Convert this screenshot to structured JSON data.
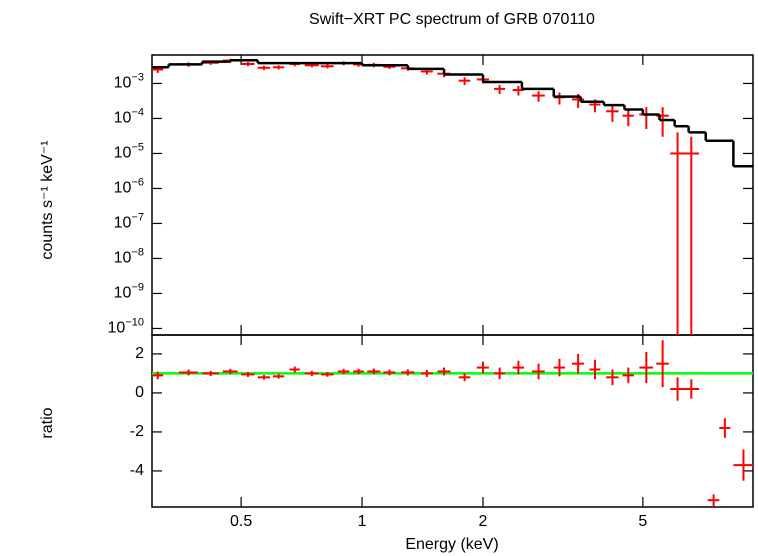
{
  "chart_data": [
    {
      "type": "errorbar",
      "title": "Swift−XRT PC spectrum of GRB 070110",
      "ylabel": "counts s⁻¹ keV⁻¹",
      "xscale": "log",
      "yscale": "log",
      "xlim": [
        0.3,
        9.4
      ],
      "ylim": [
        6.5e-11,
        0.0065
      ],
      "yticks": [
        {
          "value": 0.001,
          "label": "10−3"
        },
        {
          "value": 0.0001,
          "label": "10−4"
        },
        {
          "value": 1e-05,
          "label": "10−5"
        },
        {
          "value": 1e-06,
          "label": "10−6"
        },
        {
          "value": 1e-07,
          "label": "10−7"
        },
        {
          "value": 1e-08,
          "label": "10−8"
        },
        {
          "value": 1e-09,
          "label": "10−9"
        },
        {
          "value": 1e-10,
          "label": "10−10"
        }
      ],
      "series": [
        {
          "type": "errorbar",
          "color": "#ff0000",
          "x": [
            0.31,
            0.37,
            0.42,
            0.47,
            0.52,
            0.57,
            0.62,
            0.68,
            0.75,
            0.82,
            0.9,
            0.98,
            1.07,
            1.17,
            1.3,
            1.45,
            1.6,
            1.8,
            2.0,
            2.2,
            2.45,
            2.75,
            3.1,
            3.45,
            3.8,
            4.2,
            4.6,
            5.1,
            5.6,
            6.1,
            6.6
          ],
          "xerr": [
            0.01,
            0.02,
            0.02,
            0.02,
            0.02,
            0.02,
            0.02,
            0.02,
            0.03,
            0.03,
            0.03,
            0.03,
            0.04,
            0.04,
            0.05,
            0.05,
            0.06,
            0.06,
            0.07,
            0.07,
            0.08,
            0.1,
            0.1,
            0.12,
            0.12,
            0.15,
            0.15,
            0.2,
            0.2,
            0.25,
            0.3
          ],
          "values": [
            0.0025,
            0.0035,
            0.0039,
            0.0045,
            0.0036,
            0.0028,
            0.0029,
            0.0036,
            0.0033,
            0.0031,
            0.0038,
            0.0035,
            0.0034,
            0.003,
            0.0027,
            0.0022,
            0.0019,
            0.0012,
            0.0013,
            0.0007,
            0.00065,
            0.00045,
            0.0004,
            0.00035,
            0.00025,
            0.00016,
            0.00012,
            0.00013,
            0.00012,
            1e-05,
            1e-05
          ],
          "errors": [
            0.0005,
            0.0005,
            0.0005,
            0.0006,
            0.0005,
            0.0004,
            0.0004,
            0.0005,
            0.0004,
            0.0004,
            0.0005,
            0.0005,
            0.0005,
            0.0004,
            0.0004,
            0.0004,
            0.0004,
            0.0003,
            0.0003,
            0.0002,
            0.0002,
            0.00015,
            0.00015,
            0.00015,
            0.0001,
            8e-05,
            6e-05,
            8e-05,
            9e-05,
            3e-05,
            2e-05
          ]
        },
        {
          "type": "step",
          "color": "#000000",
          "bins": [
            0.3,
            0.33,
            0.4,
            0.47,
            0.55,
            0.7,
            1.0,
            1.3,
            1.6,
            2.0,
            2.5,
            3.0,
            3.5,
            4.0,
            4.5,
            5.0,
            5.5,
            6.0,
            6.5,
            7.17,
            8.4,
            9.4
          ],
          "values": [
            0.0029,
            0.0035,
            0.0042,
            0.0046,
            0.0038,
            0.0038,
            0.0033,
            0.0026,
            0.0018,
            0.0011,
            0.0007,
            0.00042,
            0.0003,
            0.00024,
            0.00018,
            0.00013,
            9e-05,
            6e-05,
            4e-05,
            2.3e-05,
            4.3e-06
          ]
        }
      ]
    },
    {
      "type": "errorbar",
      "xlabel": "Energy (keV)",
      "ylabel": "ratio",
      "xscale": "log",
      "xlim": [
        0.3,
        9.4
      ],
      "ylim": [
        -5.85,
        2.97
      ],
      "xticks": [
        0.5,
        1,
        2,
        5
      ],
      "yticks": [
        2,
        0,
        -2,
        -4
      ],
      "reference": {
        "value": 1,
        "color": "#00ff00"
      },
      "series": [
        {
          "type": "errorbar",
          "color": "#ff0000",
          "x": [
            0.31,
            0.37,
            0.42,
            0.47,
            0.52,
            0.57,
            0.62,
            0.68,
            0.75,
            0.82,
            0.9,
            0.98,
            1.07,
            1.17,
            1.3,
            1.45,
            1.6,
            1.8,
            2.0,
            2.2,
            2.45,
            2.75,
            3.1,
            3.45,
            3.8,
            4.2,
            4.6,
            5.1,
            5.6,
            6.1,
            6.6,
            7.5,
            8.0,
            8.9
          ],
          "xerr": [
            0.01,
            0.02,
            0.02,
            0.02,
            0.02,
            0.02,
            0.02,
            0.02,
            0.03,
            0.03,
            0.03,
            0.03,
            0.04,
            0.04,
            0.05,
            0.05,
            0.06,
            0.06,
            0.07,
            0.07,
            0.08,
            0.1,
            0.1,
            0.12,
            0.12,
            0.15,
            0.15,
            0.2,
            0.2,
            0.25,
            0.3,
            0.25,
            0.25,
            0.5
          ],
          "values": [
            0.9,
            1.05,
            1.0,
            1.1,
            0.95,
            0.8,
            0.85,
            1.2,
            1.0,
            0.95,
            1.1,
            1.1,
            1.1,
            1.05,
            1.05,
            1.0,
            1.1,
            0.8,
            1.3,
            1.0,
            1.3,
            1.1,
            1.3,
            1.5,
            1.2,
            0.8,
            0.9,
            1.3,
            1.5,
            0.2,
            0.2,
            -5.5,
            -1.8,
            -3.7
          ],
          "errors": [
            0.2,
            0.15,
            0.13,
            0.14,
            0.13,
            0.12,
            0.12,
            0.15,
            0.13,
            0.12,
            0.14,
            0.14,
            0.15,
            0.15,
            0.16,
            0.18,
            0.2,
            0.2,
            0.3,
            0.3,
            0.35,
            0.4,
            0.45,
            0.5,
            0.5,
            0.4,
            0.4,
            0.8,
            1.2,
            0.6,
            0.5,
            0.3,
            0.5,
            0.8
          ]
        }
      ]
    }
  ]
}
